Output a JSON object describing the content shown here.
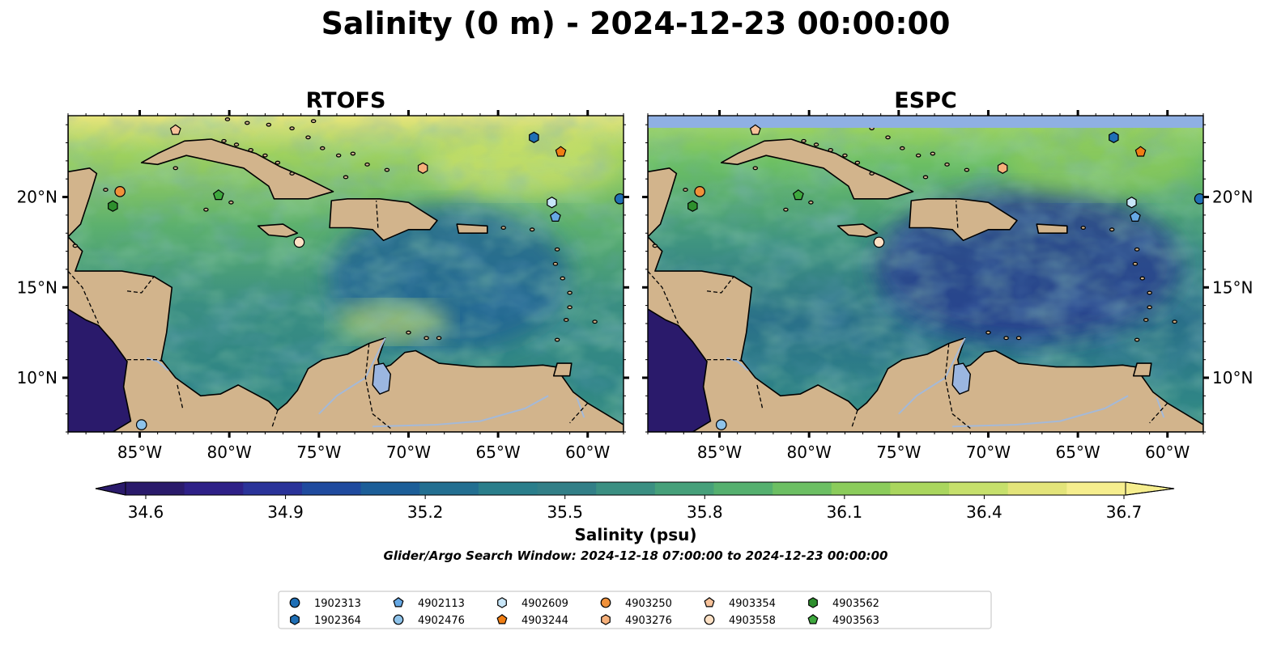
{
  "title": "Salinity (0 m) - 2024-12-23 00:00:00",
  "panels": [
    {
      "title": "RTOFS",
      "top_band": false
    },
    {
      "title": "ESPC",
      "top_band": true
    }
  ],
  "lon_ticks": [
    "85°W",
    "80°W",
    "75°W",
    "70°W",
    "65°W",
    "60°W"
  ],
  "lat_ticks": [
    "20°N",
    "15°N",
    "10°N"
  ],
  "extent": {
    "lon": [
      -89,
      -58
    ],
    "lat": [
      7,
      24.5
    ]
  },
  "colorbar": {
    "label": "Salinity (psu)",
    "ticks": [
      "34.6",
      "34.9",
      "35.2",
      "35.5",
      "35.8",
      "36.1",
      "36.4",
      "36.7"
    ],
    "colors": [
      "#2a1a6b",
      "#2e2087",
      "#2a3399",
      "#1f4a9e",
      "#1c5e98",
      "#236f91",
      "#2a7e8b",
      "#327f87",
      "#3b8f82",
      "#46a07a",
      "#55b06f",
      "#6cbf63",
      "#8bcc5b",
      "#aad65e",
      "#c6e06c",
      "#e3e47a",
      "#f6ee8e"
    ],
    "extend": "both"
  },
  "search_window": "Glider/Argo Search Window: 2024-12-18 07:00:00 to 2024-12-23 00:00:00",
  "colors": {
    "land": "#d2b48c",
    "lake": "#9bb6e0",
    "river": "#a4b9d8",
    "ocean_pacific": "#2a1a6b",
    "esc_band": "#8fb0e3"
  },
  "legend": [
    {
      "id": "1902313",
      "marker": "circle",
      "color": "#1f6fb5",
      "lon": -58.2,
      "lat": 19.9
    },
    {
      "id": "1902364",
      "marker": "hexagon",
      "color": "#1f6fb5",
      "lon": -63.0,
      "lat": 23.3
    },
    {
      "id": "4902113",
      "marker": "pentagon",
      "color": "#66a8e4",
      "lon": -61.8,
      "lat": 18.9
    },
    {
      "id": "4902476",
      "marker": "circle",
      "color": "#8ec3ea",
      "lon": -84.9,
      "lat": 7.4
    },
    {
      "id": "4902609",
      "marker": "hexagon",
      "color": "#c8e6f8",
      "lon": -62.0,
      "lat": 19.7
    },
    {
      "id": "4903244",
      "marker": "pentagon",
      "color": "#f07e14",
      "lon": -61.5,
      "lat": 22.5
    },
    {
      "id": "4903250",
      "marker": "circle",
      "color": "#f0913a",
      "lon": -86.1,
      "lat": 20.3
    },
    {
      "id": "4903276",
      "marker": "hexagon",
      "color": "#f6b07a",
      "lon": -69.2,
      "lat": 21.6
    },
    {
      "id": "4903354",
      "marker": "pentagon",
      "color": "#f7c29a",
      "lon": -83.0,
      "lat": 23.7
    },
    {
      "id": "4903558",
      "marker": "circle",
      "color": "#fde0c4",
      "lon": -76.1,
      "lat": 17.5
    },
    {
      "id": "4903562",
      "marker": "hexagon",
      "color": "#2d8f2d",
      "lon": -86.5,
      "lat": 19.5
    },
    {
      "id": "4903563",
      "marker": "pentagon",
      "color": "#3ea83e",
      "lon": -80.6,
      "lat": 20.1
    }
  ]
}
